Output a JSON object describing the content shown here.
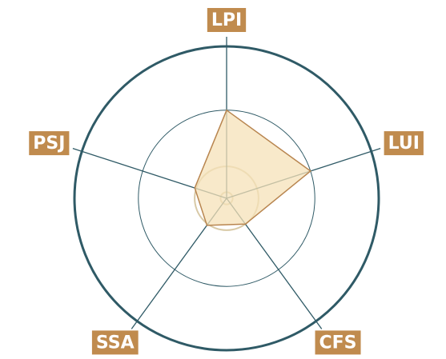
{
  "chart_data": {
    "type": "radar",
    "categories": [
      "LPI",
      "LUI",
      "CFS",
      "SSA",
      "PSJ"
    ],
    "values": [
      58,
      58,
      21,
      22,
      22
    ],
    "color": "#b8854f",
    "fill": "#f5e2b8",
    "rlim": [
      0,
      100
    ],
    "rticks": [
      4,
      21,
      58,
      100
    ],
    "grid_color": "#2f5a66",
    "label_color": "#c08b4e"
  }
}
